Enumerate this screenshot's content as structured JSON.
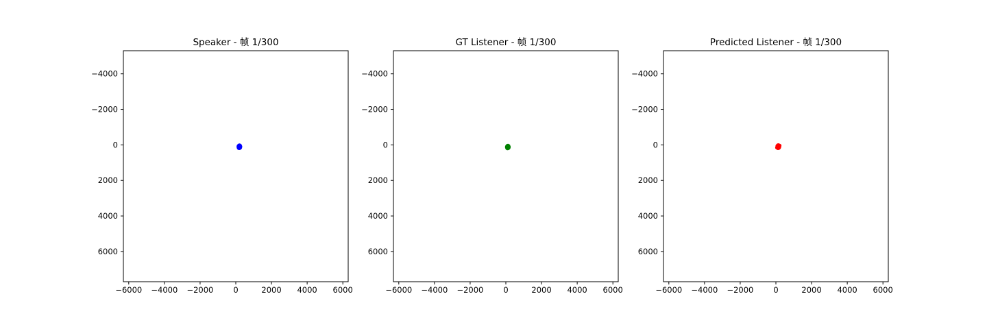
{
  "chart_data": [
    {
      "type": "scatter",
      "title": "Speaker - 帧 1/300",
      "xlabel": "",
      "ylabel": "",
      "xlim": [
        -6300,
        6300
      ],
      "ylim": [
        7700,
        -5300
      ],
      "y_inverted": true,
      "grid": false,
      "xticks": [
        -6000,
        -4000,
        -2000,
        0,
        2000,
        4000,
        6000
      ],
      "yticks": [
        -4000,
        -2000,
        0,
        2000,
        4000,
        6000
      ],
      "xtick_labels": [
        "−6000",
        "−4000",
        "−2000",
        "0",
        "2000",
        "4000",
        "6000"
      ],
      "ytick_labels": [
        "−4000",
        "−2000",
        "0",
        "2000",
        "4000",
        "6000"
      ],
      "series": [
        {
          "color": "#0000ff",
          "x": [
            150,
            180,
            210,
            240,
            260,
            250,
            220,
            185,
            160,
            145,
            175,
            230,
            200,
            165,
            250,
            205
          ],
          "y": [
            70,
            30,
            20,
            40,
            90,
            150,
            180,
            190,
            170,
            120,
            100,
            110,
            60,
            140,
            120,
            150
          ]
        }
      ]
    },
    {
      "type": "scatter",
      "title": "GT Listener - 帧 1/300",
      "xlabel": "",
      "ylabel": "",
      "xlim": [
        -6300,
        6300
      ],
      "ylim": [
        7700,
        -5300
      ],
      "y_inverted": true,
      "grid": false,
      "xticks": [
        -6000,
        -4000,
        -2000,
        0,
        2000,
        4000,
        6000
      ],
      "yticks": [
        -4000,
        -2000,
        0,
        2000,
        4000,
        6000
      ],
      "xtick_labels": [
        "−6000",
        "−4000",
        "−2000",
        "0",
        "2000",
        "4000",
        "6000"
      ],
      "ytick_labels": [
        "−4000",
        "−2000",
        "0",
        "2000",
        "4000",
        "6000"
      ],
      "series": [
        {
          "color": "#008000",
          "x": [
            60,
            90,
            120,
            150,
            170,
            160,
            130,
            95,
            70,
            55,
            85,
            140,
            110,
            75,
            160,
            115
          ],
          "y": [
            90,
            50,
            40,
            60,
            110,
            160,
            190,
            200,
            180,
            130,
            110,
            120,
            80,
            150,
            140,
            160
          ]
        }
      ]
    },
    {
      "type": "scatter",
      "title": "Predicted Listener - 帧 1/300",
      "xlabel": "",
      "ylabel": "",
      "xlim": [
        -6300,
        6300
      ],
      "ylim": [
        7700,
        -5300
      ],
      "y_inverted": true,
      "grid": false,
      "xticks": [
        -6000,
        -4000,
        -2000,
        0,
        2000,
        4000,
        6000
      ],
      "yticks": [
        -4000,
        -2000,
        0,
        2000,
        4000,
        6000
      ],
      "xtick_labels": [
        "−6000",
        "−4000",
        "−2000",
        "0",
        "2000",
        "4000",
        "6000"
      ],
      "ytick_labels": [
        "−4000",
        "−2000",
        "0",
        "2000",
        "4000",
        "6000"
      ],
      "series": [
        {
          "color": "#ff0000",
          "x": [
            80,
            110,
            140,
            175,
            200,
            190,
            160,
            120,
            95,
            75,
            105,
            165,
            135,
            100,
            185,
            140,
            210,
            60
          ],
          "y": [
            60,
            20,
            10,
            30,
            80,
            140,
            175,
            190,
            170,
            120,
            90,
            100,
            50,
            130,
            110,
            150,
            40,
            150
          ]
        }
      ]
    }
  ]
}
